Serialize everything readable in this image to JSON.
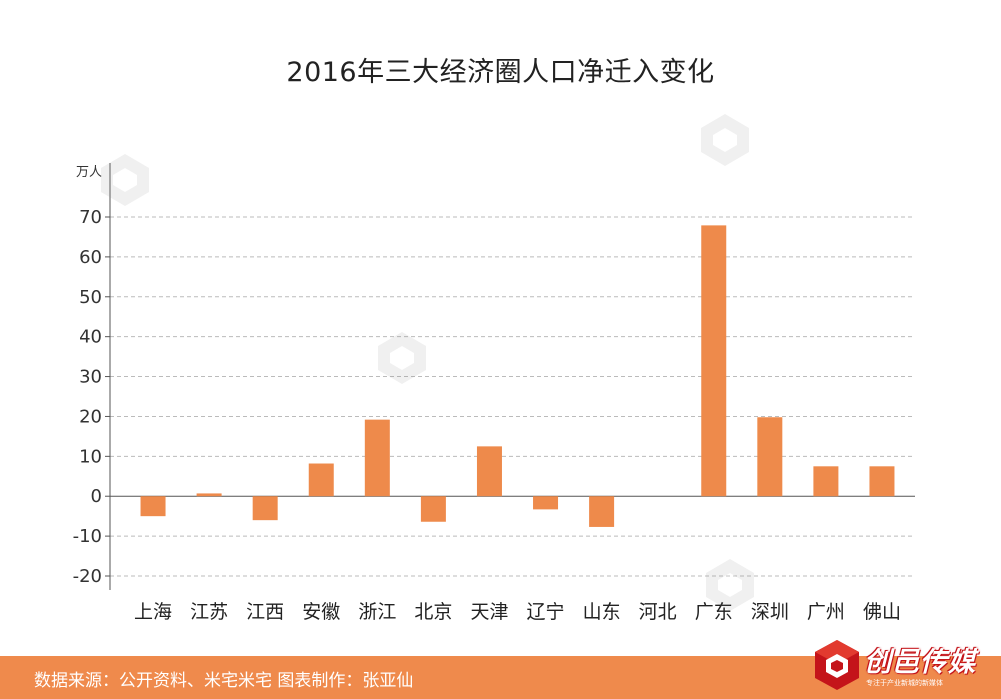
{
  "chart_data": {
    "type": "bar",
    "title": "2016年三大经济圈人口净迁入变化",
    "ylabel": "万人",
    "xlabel": "",
    "categories": [
      "上海",
      "江苏",
      "江西",
      "安徽",
      "浙江",
      "北京",
      "天津",
      "辽宁",
      "山东",
      "河北",
      "广东",
      "深圳",
      "广州",
      "佛山"
    ],
    "values": [
      -5.0,
      0.7,
      -6.0,
      8.2,
      19.2,
      -6.4,
      12.5,
      -3.3,
      -7.7,
      0,
      67.9,
      19.8,
      7.5,
      7.5
    ],
    "ylim": [
      -20,
      70
    ],
    "yticks": [
      -20,
      -10,
      0,
      10,
      20,
      30,
      40,
      50,
      60,
      70
    ],
    "grid": true,
    "bar_color": "#ee8a4b"
  },
  "footer": {
    "source": "数据来源：公开资料、米宅米宅  图表制作：张亚仙"
  },
  "brand": {
    "name": "创邑传媒",
    "tagline": "专注于产业新城的新媒体"
  },
  "colors": {
    "accent": "#ef8a4c",
    "brand_red": "#c4141a"
  }
}
